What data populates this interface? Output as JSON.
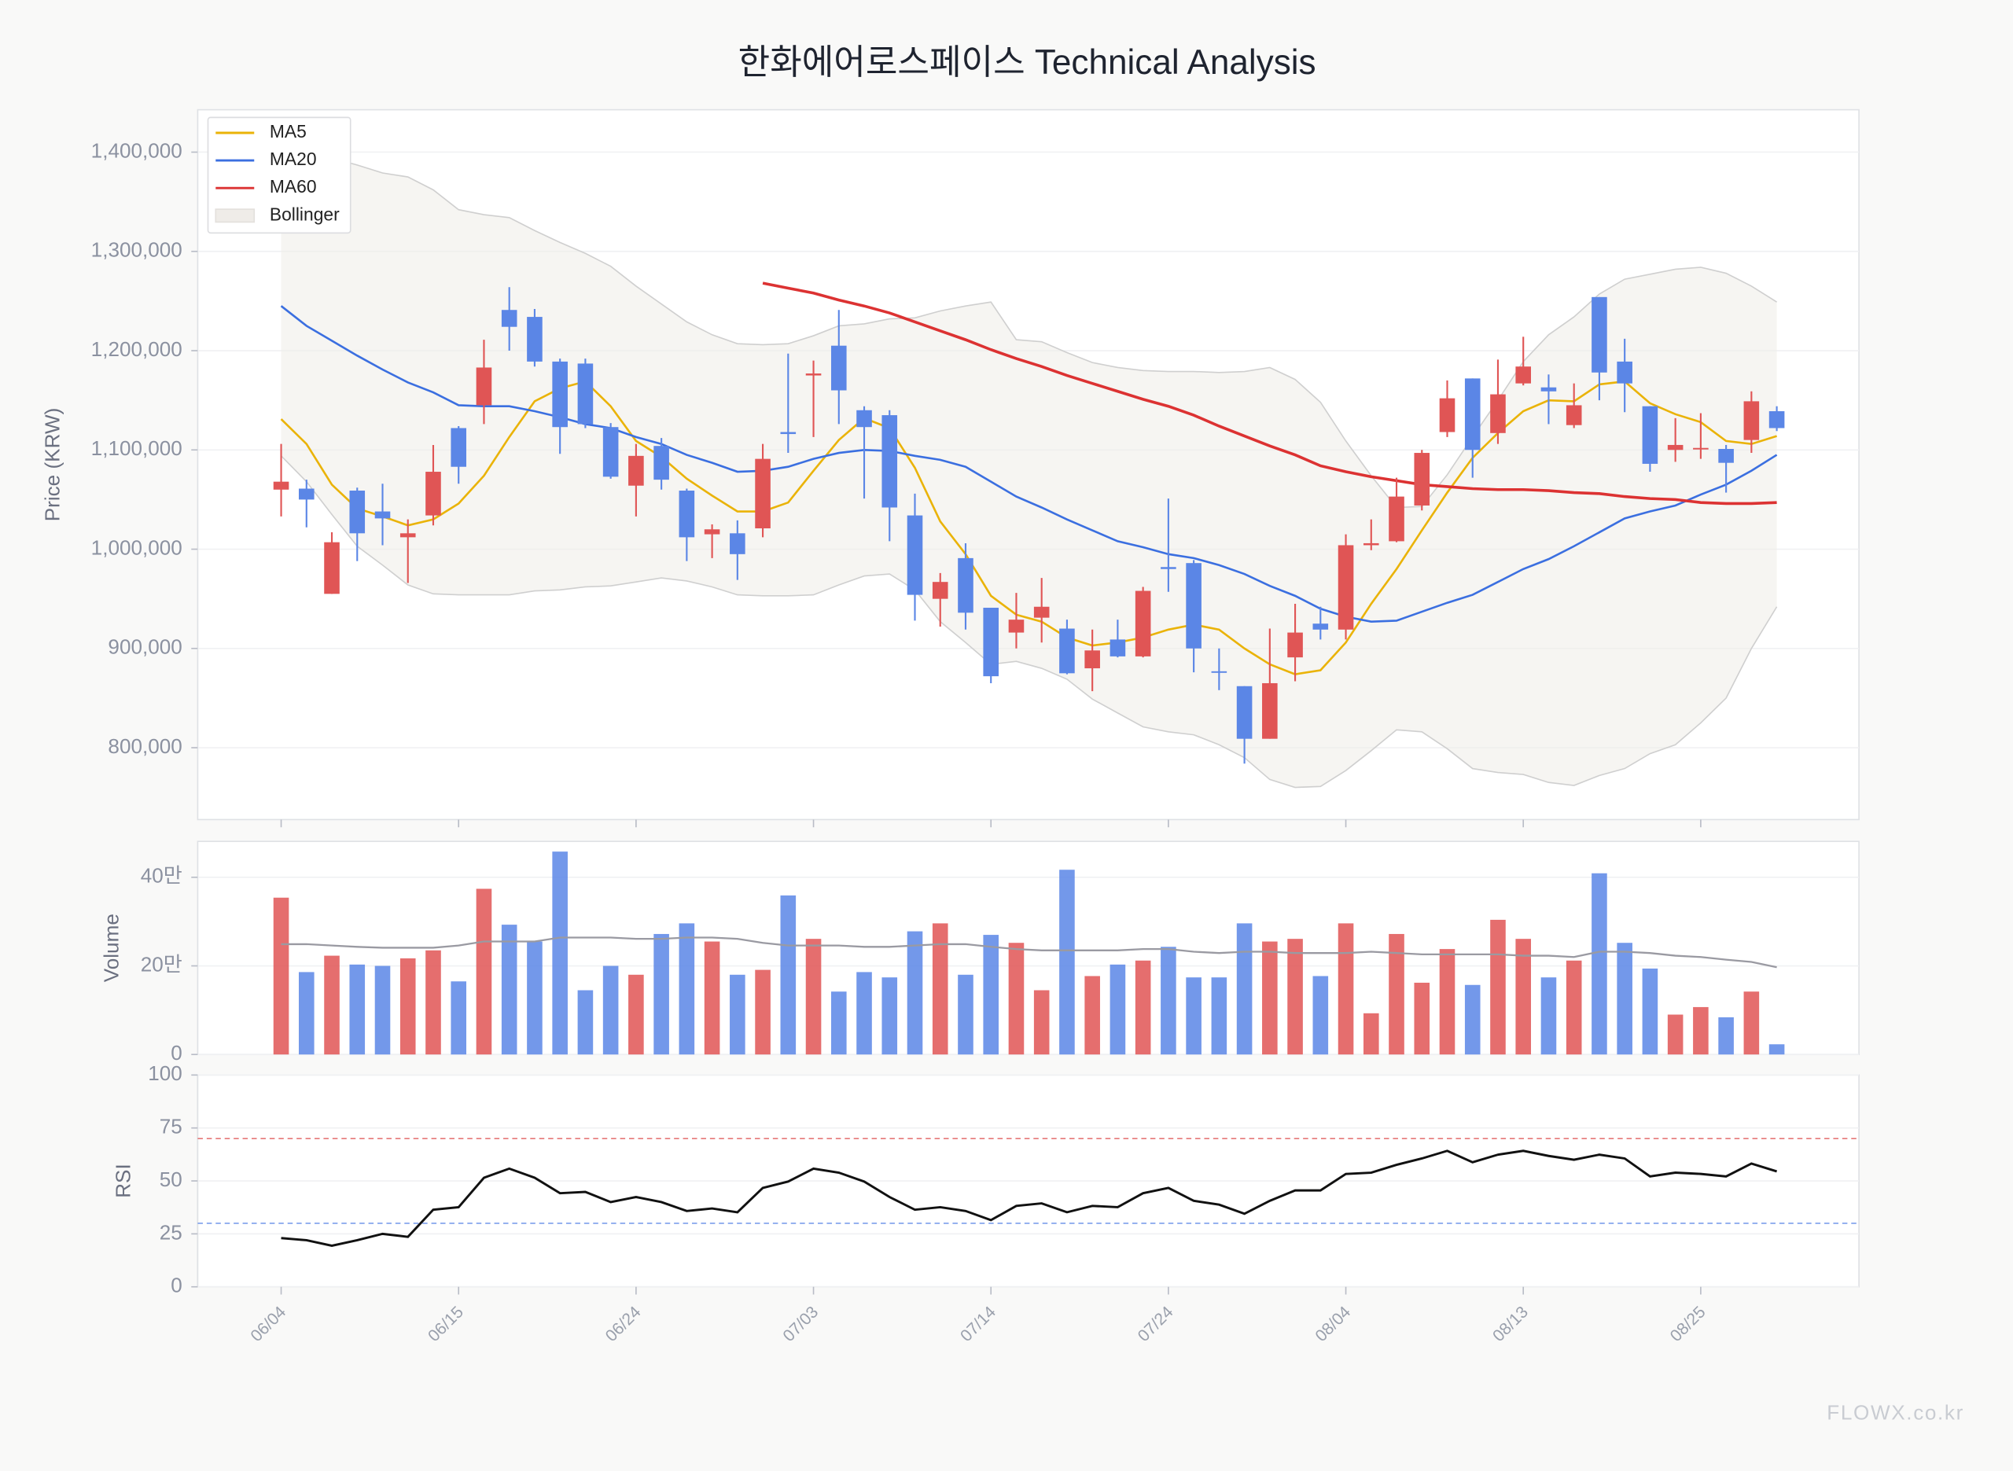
{
  "chart_data": [
    {
      "type": "candlestick",
      "title": "한화에어로스페이스 Technical Analysis",
      "y_label": "Price (KRW)",
      "categories": [
        "06/04",
        null,
        null,
        null,
        null,
        null,
        null,
        "06/15",
        null,
        null,
        null,
        null,
        null,
        null,
        "06/24",
        null,
        null,
        null,
        null,
        null,
        null,
        "07/03",
        null,
        null,
        null,
        null,
        null,
        null,
        "07/14",
        null,
        null,
        null,
        null,
        null,
        null,
        "07/24",
        null,
        null,
        null,
        null,
        null,
        null,
        "08/04",
        null,
        null,
        null,
        null,
        null,
        null,
        "08/13",
        null,
        null,
        null,
        null,
        null,
        null,
        "08/25",
        null,
        null,
        null
      ],
      "up_color": "#e05555",
      "down_color": "#5b86e6",
      "open": [
        1060000,
        1061000,
        955000,
        1059000,
        1038000,
        1012000,
        1034000,
        1122000,
        1145000,
        1241000,
        1234000,
        1189000,
        1187000,
        1123000,
        1064000,
        1104000,
        1059000,
        1015000,
        1016000,
        1021000,
        1118000,
        1175000,
        1205000,
        1140000,
        1135000,
        1034000,
        950000,
        991000,
        941000,
        916000,
        931000,
        920000,
        880000,
        909000,
        892000,
        982000,
        986000,
        877000,
        862000,
        809000,
        891000,
        925000,
        919000,
        1004000,
        1008000,
        1044000,
        1118000,
        1172000,
        1117000,
        1167000,
        1163000,
        1125000,
        1254000,
        1189000,
        1144000,
        1100000,
        1101000,
        1101000,
        1110000,
        1139000
      ],
      "high": [
        1106000,
        1070000,
        1017000,
        1062000,
        1066000,
        1030000,
        1105000,
        1124000,
        1211000,
        1264000,
        1242000,
        1192000,
        1192000,
        1127000,
        1106000,
        1112000,
        1061000,
        1025000,
        1029000,
        1106000,
        1197000,
        1190000,
        1241000,
        1144000,
        1140000,
        1056000,
        976000,
        1006000,
        941000,
        956000,
        971000,
        929000,
        919000,
        929000,
        962000,
        1051000,
        989000,
        900000,
        862000,
        920000,
        945000,
        942000,
        1015000,
        1030000,
        1072000,
        1100000,
        1170000,
        1172000,
        1191000,
        1214000,
        1176000,
        1167000,
        1254000,
        1212000,
        1144000,
        1132000,
        1137000,
        1105000,
        1159000,
        1144000
      ],
      "low": [
        1033000,
        1022000,
        955000,
        988000,
        1004000,
        966000,
        1024000,
        1066000,
        1126000,
        1200000,
        1184000,
        1096000,
        1122000,
        1071000,
        1033000,
        1060000,
        988000,
        991000,
        969000,
        1012000,
        1097000,
        1113000,
        1126000,
        1051000,
        1008000,
        928000,
        922000,
        919000,
        865000,
        900000,
        906000,
        874000,
        857000,
        891000,
        891000,
        957000,
        876000,
        858000,
        784000,
        809000,
        867000,
        909000,
        909000,
        999000,
        1007000,
        1039000,
        1113000,
        1072000,
        1106000,
        1165000,
        1126000,
        1122000,
        1150000,
        1138000,
        1078000,
        1088000,
        1091000,
        1057000,
        1097000,
        1119000
      ],
      "close": [
        1068000,
        1050000,
        1007000,
        1016000,
        1031000,
        1016000,
        1078000,
        1083000,
        1183000,
        1224000,
        1189000,
        1123000,
        1126000,
        1073000,
        1094000,
        1070000,
        1012000,
        1020000,
        995000,
        1091000,
        1116000,
        1177000,
        1160000,
        1123000,
        1042000,
        954000,
        967000,
        936000,
        872000,
        929000,
        942000,
        875000,
        898000,
        892000,
        958000,
        980000,
        900000,
        876000,
        809000,
        865000,
        916000,
        919000,
        1004000,
        1006000,
        1053000,
        1097000,
        1152000,
        1100000,
        1156000,
        1184000,
        1159000,
        1145000,
        1178000,
        1167000,
        1086000,
        1105000,
        1102000,
        1087000,
        1149000,
        1122000
      ],
      "series": [
        {
          "name": "MA5",
          "color": "#eab308",
          "values": [
            1131000,
            1106000,
            1065000,
            1041000,
            1033000,
            1024000,
            1030000,
            1046000,
            1074000,
            1113000,
            1149000,
            1162000,
            1169000,
            1144000,
            1109000,
            1093000,
            1071000,
            1054000,
            1038000,
            1038000,
            1047000,
            1079000,
            1110000,
            1132000,
            1122000,
            1082000,
            1028000,
            995000,
            953000,
            934000,
            927000,
            911000,
            903000,
            906000,
            911000,
            919000,
            924000,
            919000,
            900000,
            884000,
            874000,
            878000,
            906000,
            945000,
            980000,
            1019000,
            1057000,
            1092000,
            1117000,
            1139000,
            1150000,
            1149000,
            1166000,
            1169000,
            1147000,
            1136000,
            1128000,
            1109000,
            1106000,
            1114000
          ]
        },
        {
          "name": "MA20",
          "color": "#3b6fe0",
          "values": [
            1245000,
            1225000,
            1210000,
            1195000,
            1181000,
            1168000,
            1158000,
            1145000,
            1144000,
            1144000,
            1139000,
            1133000,
            1126000,
            1122000,
            1113000,
            1106000,
            1095000,
            1087000,
            1078000,
            1079000,
            1083000,
            1091000,
            1097000,
            1100000,
            1099000,
            1094000,
            1090000,
            1083000,
            1068000,
            1053000,
            1042000,
            1030000,
            1019000,
            1008000,
            1002000,
            995000,
            991000,
            984000,
            975000,
            963000,
            953000,
            940000,
            932000,
            927000,
            928000,
            937000,
            946000,
            954000,
            967000,
            980000,
            990000,
            1003000,
            1017000,
            1031000,
            1038000,
            1044000,
            1055000,
            1065000,
            1079000,
            1095000
          ]
        },
        {
          "name": "MA60",
          "color": "#dc3232",
          "values": [
            null,
            null,
            null,
            null,
            null,
            null,
            null,
            null,
            null,
            null,
            null,
            null,
            null,
            null,
            null,
            null,
            null,
            null,
            null,
            1268000,
            1263000,
            1258000,
            1251000,
            1245000,
            1238000,
            1229000,
            1220000,
            1211000,
            1201000,
            1192000,
            1184000,
            1175000,
            1167000,
            1159000,
            1151000,
            1144000,
            1135000,
            1124000,
            1114000,
            1104000,
            1095000,
            1084000,
            1078000,
            1073000,
            1069000,
            1065000,
            1063000,
            1061000,
            1060000,
            1060000,
            1059000,
            1057000,
            1056000,
            1053000,
            1051000,
            1050000,
            1047000,
            1046000,
            1046000,
            1047000
          ]
        }
      ],
      "bollinger": {
        "name": "Bollinger",
        "color": "#cfcfcf",
        "upper": [
          1397000,
          1394000,
          1394000,
          1387000,
          1379000,
          1375000,
          1362000,
          1342000,
          1337000,
          1334000,
          1321000,
          1309000,
          1298000,
          1285000,
          1265000,
          1247000,
          1229000,
          1216000,
          1207000,
          1206000,
          1207000,
          1215000,
          1225000,
          1227000,
          1232000,
          1233000,
          1240000,
          1245000,
          1249000,
          1211000,
          1209000,
          1198000,
          1188000,
          1183000,
          1180000,
          1179000,
          1179000,
          1178000,
          1179000,
          1183000,
          1171000,
          1148000,
          1109000,
          1074000,
          1042000,
          1043000,
          1075000,
          1113000,
          1150000,
          1189000,
          1216000,
          1234000,
          1257000,
          1272000,
          1277000,
          1282000,
          1284000,
          1278000,
          1265000,
          1249000
        ],
        "lower": [
          1094000,
          1068000,
          1035000,
          1003000,
          984000,
          964000,
          955000,
          954000,
          954000,
          954000,
          958000,
          959000,
          962000,
          963000,
          967000,
          971000,
          968000,
          962000,
          954000,
          953000,
          953000,
          954000,
          964000,
          973000,
          975000,
          959000,
          927000,
          906000,
          884000,
          887000,
          880000,
          869000,
          849000,
          835000,
          821000,
          816000,
          813000,
          803000,
          790000,
          768000,
          760000,
          761000,
          777000,
          797000,
          818000,
          816000,
          799000,
          779000,
          775000,
          773000,
          765000,
          762000,
          772000,
          779000,
          794000,
          803000,
          825000,
          850000,
          900000,
          942000
        ]
      },
      "ylim": [
        727600,
        1442700
      ],
      "yticks": [
        {
          "value": 800000,
          "label": "800,000"
        },
        {
          "value": 900000,
          "label": "900,000"
        },
        {
          "value": 1000000,
          "label": "1,000,000"
        },
        {
          "value": 1100000,
          "label": "1,100,000"
        },
        {
          "value": 1200000,
          "label": "1,200,000"
        },
        {
          "value": 1300000,
          "label": "1,300,000"
        },
        {
          "value": 1400000,
          "label": "1,400,000"
        }
      ],
      "grid": true,
      "legend": "upper left"
    },
    {
      "type": "bar",
      "y_label": "Volume",
      "values": [
        354000,
        186000,
        223000,
        203000,
        200000,
        217000,
        235000,
        165000,
        374000,
        293000,
        255000,
        458000,
        145000,
        200000,
        180000,
        272000,
        296000,
        255000,
        180000,
        191000,
        359000,
        261000,
        142000,
        186000,
        174000,
        278000,
        296000,
        180000,
        270000,
        252000,
        145000,
        417000,
        177000,
        203000,
        212000,
        243000,
        174000,
        174000,
        296000,
        255000,
        261000,
        177000,
        296000,
        93000,
        272000,
        162000,
        238000,
        157000,
        304000,
        261000,
        174000,
        212000,
        409000,
        252000,
        194000,
        90000,
        107000,
        84000,
        142000,
        23000
      ],
      "ma_color": "#9a9aa2",
      "ma_values": [
        249000,
        249000,
        246000,
        243000,
        241000,
        241000,
        241000,
        246000,
        255000,
        255000,
        255000,
        264000,
        264000,
        264000,
        261000,
        261000,
        264000,
        264000,
        261000,
        252000,
        246000,
        246000,
        246000,
        243000,
        243000,
        246000,
        249000,
        249000,
        243000,
        238000,
        235000,
        235000,
        235000,
        235000,
        238000,
        238000,
        232000,
        229000,
        232000,
        232000,
        229000,
        229000,
        229000,
        232000,
        229000,
        226000,
        226000,
        226000,
        226000,
        223000,
        223000,
        220000,
        232000,
        232000,
        229000,
        223000,
        220000,
        214000,
        209000,
        197000
      ],
      "ylim": [
        0,
        481000
      ],
      "yticks": [
        0,
        {
          "value": 200000,
          "label": "20만"
        },
        {
          "value": 400000,
          "label": "40만"
        }
      ],
      "grid": true
    },
    {
      "type": "line",
      "y_label": "RSI",
      "color": "#111111",
      "values": [
        23,
        22,
        19.4,
        22,
        25,
        23.6,
        36.4,
        37.6,
        51.5,
        55.8,
        51.5,
        44.2,
        44.8,
        40,
        42.4,
        40,
        35.8,
        37,
        35.2,
        46.7,
        49.7,
        55.8,
        53.9,
        49.7,
        42.4,
        36.4,
        37.6,
        35.8,
        31.5,
        38.2,
        39.4,
        35.2,
        38.2,
        37.6,
        44.2,
        46.7,
        40.6,
        38.8,
        34.5,
        40.6,
        45.5,
        45.5,
        53.3,
        53.9,
        57.6,
        60.6,
        64.2,
        58.8,
        62.4,
        64.2,
        61.8,
        60,
        62.4,
        60.6,
        52.1,
        53.9,
        53.3,
        52.1,
        58.2,
        54.5
      ],
      "overbought": 70,
      "oversold": 30,
      "overbought_color": "#e05555",
      "oversold_color": "#5b86e6",
      "ylim": [
        0,
        100
      ],
      "yticks": [
        0,
        25,
        50,
        75,
        100
      ],
      "grid": true
    }
  ],
  "watermark": "FLOWX.co.kr"
}
